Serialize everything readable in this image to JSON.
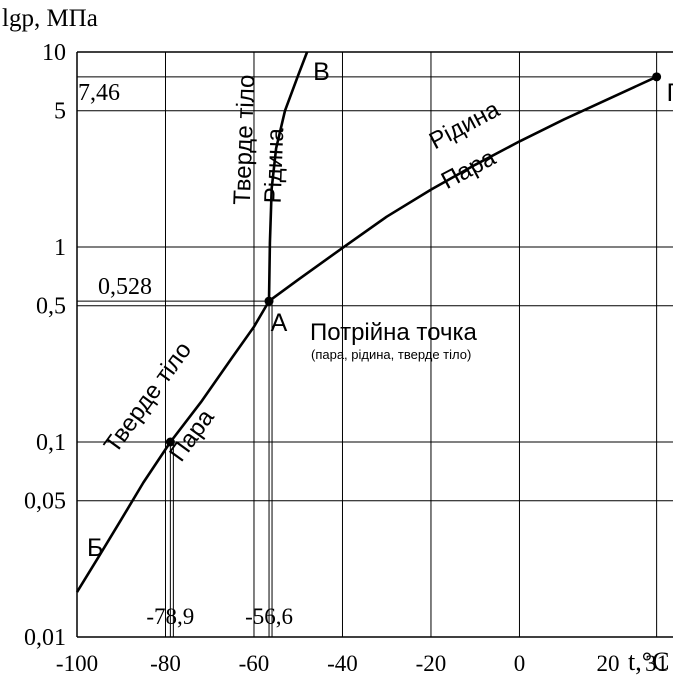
{
  "chart_data": {
    "type": "line",
    "title": "",
    "xlabel": "t,°C",
    "ylabel": "lgp, МПа",
    "xlim": [
      -100,
      34.7
    ],
    "ylim": [
      0.01,
      10
    ],
    "yscale": "log",
    "grid": true,
    "x_ticks": [
      {
        "value": -100,
        "label": "-100"
      },
      {
        "value": -80,
        "label": "-80"
      },
      {
        "value": -60,
        "label": "-60"
      },
      {
        "value": -40,
        "label": "-40"
      },
      {
        "value": -20,
        "label": "-20"
      },
      {
        "value": 0,
        "label": "0"
      },
      {
        "value": 20,
        "label": "20"
      },
      {
        "value": 31,
        "label": "31"
      }
    ],
    "y_ticks": [
      {
        "value": 10,
        "label": "10"
      },
      {
        "value": 5,
        "label": "5"
      },
      {
        "value": 1,
        "label": "1"
      },
      {
        "value": 0.5,
        "label": "0,5"
      },
      {
        "value": 0.1,
        "label": "0,1"
      },
      {
        "value": 0.05,
        "label": "0,05"
      },
      {
        "value": 0.01,
        "label": "0,01"
      }
    ],
    "series": [
      {
        "x": [
          -100,
          -95,
          -90,
          -85,
          -78.9,
          -72,
          -65,
          -60,
          -56.6
        ],
        "y": [
          0.017,
          0.026,
          0.04,
          0.062,
          0.1,
          0.16,
          0.27,
          0.39,
          0.528
        ]
      },
      {
        "x": [
          -56.6,
          -56.4,
          -56.0,
          -55.0,
          -53.0,
          -50.0,
          -48.0
        ],
        "y": [
          0.528,
          1.05,
          2.0,
          3.2,
          5.0,
          7.6,
          10
        ]
      },
      {
        "x": [
          -56.6,
          -50,
          -40,
          -30,
          -20,
          -10,
          0,
          10,
          20,
          31
        ],
        "y": [
          0.528,
          0.68,
          0.99,
          1.43,
          1.97,
          2.64,
          3.48,
          4.5,
          5.73,
          7.46
        ]
      }
    ],
    "points": [
      {
        "name": "А",
        "x": -56.6,
        "y": 0.528
      },
      {
        "name": "Б",
        "x": -100,
        "y": 0.017
      },
      {
        "name": "В",
        "x": -48,
        "y": 10
      },
      {
        "name": "Г",
        "x": 31,
        "y": 7.46
      },
      {
        "name": "",
        "x": -78.9,
        "y": 0.1
      }
    ],
    "reference_lines": [
      {
        "axis": "x",
        "value": -78.9,
        "label": "-78,9"
      },
      {
        "axis": "x",
        "value": -56.6,
        "label": "-56,6"
      },
      {
        "axis": "y",
        "value": 0.528,
        "label": "0,528"
      },
      {
        "axis": "y",
        "value": 7.46,
        "label": "7,46"
      }
    ],
    "region_labels": {
      "solid_gas_upper": "Тверде тіло",
      "solid_gas_lower": "Пара",
      "solid_liquid_left": "Тверде тіло",
      "solid_liquid_right": "Рідина",
      "liquid_gas_upper": "Рідина",
      "liquid_gas_lower": "Пара"
    },
    "annotations": {
      "triple_point_title": "Потрійна точка",
      "triple_point_subtitle": "(пара, рідина, тверде тіло)"
    }
  }
}
